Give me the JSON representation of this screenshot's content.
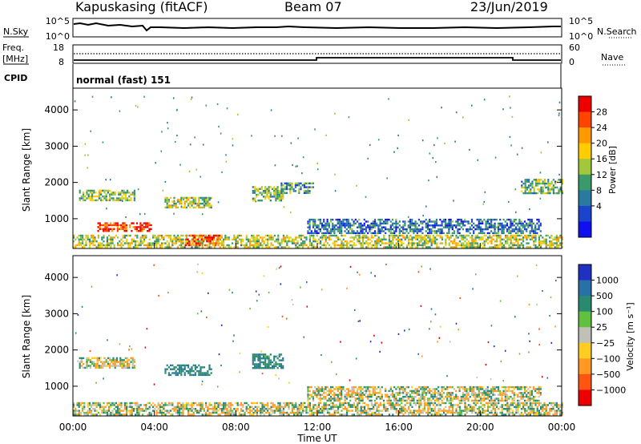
{
  "header": {
    "station": "Kapuskasing (fitACF)",
    "beam": "Beam 07",
    "date": "23/Jun/2019"
  },
  "noise_panel": {
    "left_label": "N.Sky",
    "right_label": "N.Search",
    "left_ticks": [
      "10^5",
      "10^0"
    ],
    "right_ticks": [
      "10^5",
      "10^0"
    ]
  },
  "freq_panel": {
    "left_label_1": "Freq.",
    "left_label_2": "[MHz]",
    "left_ticks": [
      "18",
      "8"
    ],
    "right_label": "Nave",
    "right_ticks": [
      "60",
      "0"
    ]
  },
  "cpid": {
    "label": "CPID",
    "text": "normal (fast) 151"
  },
  "time_axis": {
    "label": "Time UT",
    "ticks": [
      "00:00",
      "04:00",
      "08:00",
      "12:00",
      "16:00",
      "20:00",
      "00:00"
    ]
  },
  "range_axis": {
    "label": "Slant Range [km]",
    "ticks": [
      "1000",
      "2000",
      "3000",
      "4000"
    ]
  },
  "power_colorbar": {
    "label": "Power [dB]",
    "ticks": [
      "28",
      "24",
      "20",
      "16",
      "12",
      "8",
      "4"
    ],
    "colors": [
      "#ee0000",
      "#ff4400",
      "#ff9900",
      "#ffcc00",
      "#a0c838",
      "#3a9a6a",
      "#2a7aa0",
      "#1a44cc",
      "#1010ee"
    ]
  },
  "velocity_colorbar": {
    "label": "Velocity [m s⁻¹]",
    "ticks": [
      "1000",
      "500",
      "100",
      "25",
      "−25",
      "−100",
      "−500",
      "−1000"
    ],
    "colors": [
      "#2030c0",
      "#2870a8",
      "#2a8a70",
      "#62c040",
      "#c0c0b8",
      "#ffcc22",
      "#ff9922",
      "#ff5511",
      "#ee0000"
    ]
  },
  "chart_data": [
    {
      "type": "heatmap",
      "title": "Power",
      "xlabel": "Time UT",
      "ylabel": "Slant Range [km]",
      "xlim": [
        "00:00",
        "24:00"
      ],
      "ylim": [
        180,
        4600
      ],
      "colorbar": {
        "label": "Power [dB]",
        "range": [
          0,
          30
        ]
      },
      "regions": [
        {
          "t0": 0.0,
          "t1": 24.0,
          "r0": 200,
          "r1": 560,
          "value": 16
        },
        {
          "t0": 1.2,
          "t1": 3.8,
          "r0": 680,
          "r1": 900,
          "value": 28
        },
        {
          "t0": 5.5,
          "t1": 7.2,
          "r0": 250,
          "r1": 560,
          "value": 27
        },
        {
          "t0": 0.3,
          "t1": 3.0,
          "r0": 1500,
          "r1": 1800,
          "value": 14
        },
        {
          "t0": 4.5,
          "t1": 6.8,
          "r0": 1300,
          "r1": 1600,
          "value": 15
        },
        {
          "t0": 8.8,
          "t1": 10.3,
          "r0": 1500,
          "r1": 1900,
          "value": 13
        },
        {
          "t0": 10.2,
          "t1": 11.8,
          "r0": 1700,
          "r1": 2000,
          "value": 10
        },
        {
          "t0": 11.5,
          "t1": 23.0,
          "r0": 600,
          "r1": 1000,
          "value": 7
        },
        {
          "t0": 22.0,
          "t1": 24.0,
          "r0": 1700,
          "r1": 2100,
          "value": 12
        }
      ]
    },
    {
      "type": "heatmap",
      "title": "Velocity",
      "xlabel": "Time UT",
      "ylabel": "Slant Range [km]",
      "xlim": [
        "00:00",
        "24:00"
      ],
      "ylim": [
        180,
        4600
      ],
      "colorbar": {
        "label": "Velocity [m s⁻¹]",
        "range": [
          -1000,
          1000
        ]
      },
      "regions": [
        {
          "t0": 0.0,
          "t1": 24.0,
          "r0": 200,
          "r1": 560,
          "value": 0
        },
        {
          "t0": 4.5,
          "t1": 6.8,
          "r0": 1300,
          "r1": 1600,
          "value": 250
        },
        {
          "t0": 8.8,
          "t1": 10.3,
          "r0": 1500,
          "r1": 1900,
          "value": 200
        },
        {
          "t0": 0.3,
          "t1": 3.0,
          "r0": 1500,
          "r1": 1800,
          "value": 0
        },
        {
          "t0": 11.5,
          "t1": 23.0,
          "r0": 600,
          "r1": 1000,
          "value": 0
        }
      ]
    }
  ]
}
